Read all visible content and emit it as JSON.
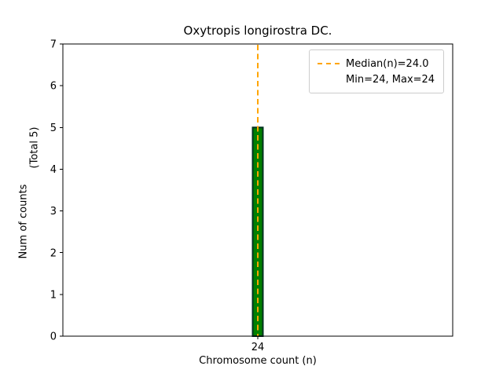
{
  "chart_data": {
    "type": "bar",
    "title": "Oxytropis longirostra DC.",
    "xlabel": "Chromosome count (n)",
    "ylabel": "Num of counts",
    "ylabel_secondary": "(Total 5)",
    "categories": [
      "24"
    ],
    "values": [
      5
    ],
    "total": 5,
    "ylim": [
      0,
      7
    ],
    "yticks": [
      0,
      1,
      2,
      3,
      4,
      5,
      6,
      7
    ],
    "median": 24.0,
    "min": 24,
    "max": 24,
    "grid": false,
    "legend": {
      "position": "upper right",
      "entries": [
        {
          "label": "Median(n)=24.0",
          "marker": "dashed-line",
          "color": "#FFA500"
        },
        {
          "label": "Min=24, Max=24",
          "marker": "none"
        }
      ]
    },
    "colors": {
      "bar_fill": "#008000",
      "bar_edge": "#013220",
      "median_line": "#FFA500",
      "axis": "#000000",
      "background": "#FFFFFF"
    }
  }
}
